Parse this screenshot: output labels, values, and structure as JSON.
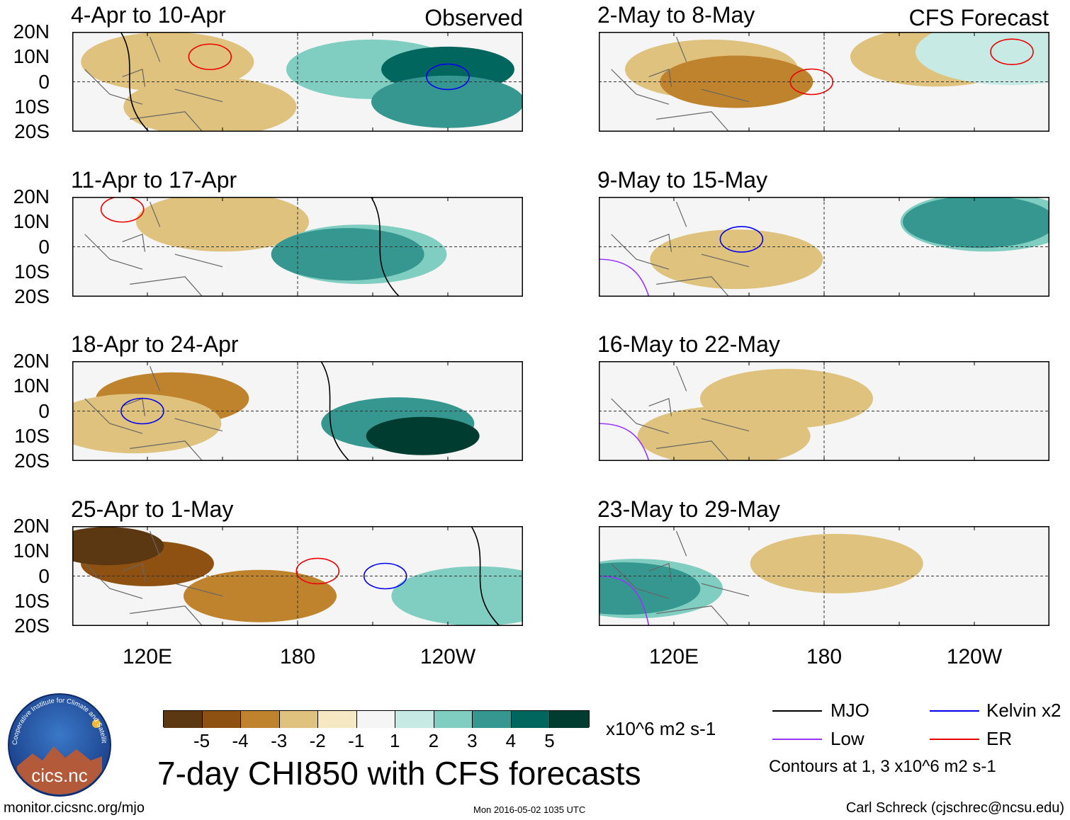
{
  "chart_data": {
    "type": "heatmap",
    "title": "7-day CHI850 with CFS forecasts",
    "lat_labels": [
      "20N",
      "10N",
      "0",
      "10S",
      "20S"
    ],
    "lon_labels": [
      "120E",
      "180",
      "120W"
    ],
    "panels": [
      {
        "id": "obs1",
        "title": "4-Apr to 10-Apr",
        "label": "Observed",
        "blobs": [
          {
            "lon": 128,
            "lat": 8,
            "v": -2
          },
          {
            "lon": 145,
            "lat": -10,
            "v": -2
          },
          {
            "lon": 210,
            "lat": 5,
            "v": 2
          },
          {
            "lon": 240,
            "lat": 5,
            "v": 4
          },
          {
            "lon": 240,
            "lat": -8,
            "v": 3
          }
        ],
        "contours": [
          {
            "type": "ER",
            "lon": 145,
            "lat": 10
          },
          {
            "type": "Kelvin x2",
            "lon": 240,
            "lat": 2
          },
          {
            "type": "MJO",
            "lon": 115,
            "lat": 0
          }
        ]
      },
      {
        "id": "obs2",
        "title": "11-Apr to 17-Apr",
        "label": "",
        "blobs": [
          {
            "lon": 150,
            "lat": 10,
            "v": -2
          },
          {
            "lon": 205,
            "lat": -3,
            "v": 2
          },
          {
            "lon": 200,
            "lat": -3,
            "v": 3
          }
        ],
        "contours": [
          {
            "type": "ER",
            "lon": 110,
            "lat": 15
          },
          {
            "type": "MJO",
            "lon": 215,
            "lat": 0
          }
        ]
      },
      {
        "id": "obs3",
        "title": "18-Apr to 24-Apr",
        "label": "",
        "blobs": [
          {
            "lon": 130,
            "lat": 5,
            "v": -3
          },
          {
            "lon": 115,
            "lat": -5,
            "v": -2
          },
          {
            "lon": 220,
            "lat": -5,
            "v": 3
          },
          {
            "lon": 230,
            "lat": -10,
            "v": 5
          }
        ],
        "contours": [
          {
            "type": "Kelvin x2",
            "lon": 118,
            "lat": 0
          },
          {
            "type": "MJO",
            "lon": 195,
            "lat": 0
          }
        ]
      },
      {
        "id": "obs4",
        "title": "25-Apr to 1-May",
        "label": "",
        "blobs": [
          {
            "lon": 120,
            "lat": 5,
            "v": -4
          },
          {
            "lon": 104,
            "lat": 12,
            "v": -5
          },
          {
            "lon": 165,
            "lat": -8,
            "v": -3
          },
          {
            "lon": 252,
            "lat": -8,
            "v": 2
          }
        ],
        "contours": [
          {
            "type": "ER",
            "lon": 188,
            "lat": 2
          },
          {
            "type": "Kelvin x2",
            "lon": 215,
            "lat": 0
          },
          {
            "type": "MJO",
            "lon": 255,
            "lat": 0
          }
        ]
      },
      {
        "id": "fc1",
        "title": "2-May to 8-May",
        "label": "CFS Forecast",
        "blobs": [
          {
            "lon": 135,
            "lat": 5,
            "v": -2
          },
          {
            "lon": 145,
            "lat": 0,
            "v": -3
          },
          {
            "lon": 225,
            "lat": 10,
            "v": -2
          },
          {
            "lon": 255,
            "lat": 12,
            "v": 1
          }
        ],
        "contours": [
          {
            "type": "ER",
            "lon": 175,
            "lat": 0
          },
          {
            "type": "ER",
            "lon": 255,
            "lat": 12
          }
        ]
      },
      {
        "id": "fc2",
        "title": "9-May to 15-May",
        "label": "",
        "blobs": [
          {
            "lon": 145,
            "lat": -5,
            "v": -2
          },
          {
            "lon": 245,
            "lat": 10,
            "v": 2
          },
          {
            "lon": 242,
            "lat": 10,
            "v": 3
          }
        ],
        "contours": [
          {
            "type": "Kelvin x2",
            "lon": 147,
            "lat": 3
          },
          {
            "type": "Low",
            "lon": 110,
            "lat": -10
          }
        ]
      },
      {
        "id": "fc3",
        "title": "16-May to 22-May",
        "label": "",
        "blobs": [
          {
            "lon": 165,
            "lat": 5,
            "v": -2
          },
          {
            "lon": 140,
            "lat": -10,
            "v": -2
          }
        ],
        "contours": [
          {
            "type": "Low",
            "lon": 110,
            "lat": -10
          }
        ]
      },
      {
        "id": "fc4",
        "title": "23-May to 29-May",
        "label": "",
        "blobs": [
          {
            "lon": 105,
            "lat": -5,
            "v": 2
          },
          {
            "lon": 100,
            "lat": -5,
            "v": 3
          },
          {
            "lon": 185,
            "lat": 5,
            "v": -2
          }
        ],
        "contours": [
          {
            "type": "Low",
            "lon": 110,
            "lat": -5
          }
        ]
      }
    ],
    "colorbar": {
      "colors": [
        "#5b3811",
        "#8e5112",
        "#bf832e",
        "#dfc27d",
        "#f6e8c3",
        "#f5f5f5",
        "#c7eae5",
        "#80cdc1",
        "#35978f",
        "#01665e",
        "#003c30"
      ],
      "ticks": [
        "-5",
        "-4",
        "-3",
        "-2",
        "-1",
        "1",
        "2",
        "3",
        "4",
        "5"
      ],
      "units": "x10^6 m2 s-1"
    },
    "legend": [
      {
        "label": "MJO",
        "color": "#000000"
      },
      {
        "label": "Kelvin x2",
        "color": "#0000ee"
      },
      {
        "label": "Low",
        "color": "#9933ff"
      },
      {
        "label": "ER",
        "color": "#ee0000"
      }
    ],
    "contour_note": "Contours at 1, 3 x10^6 m2 s-1"
  },
  "branding": {
    "logo_text": "cics.nc",
    "logo_ring": "Cooperative Institute for Climate and Satellites"
  },
  "footer": {
    "url": "monitor.cicsnc.org/mjo",
    "timestamp": "Mon 2016-05-02 1035 UTC",
    "author": "Carl Schreck (cjschrec@ncsu.edu)"
  }
}
